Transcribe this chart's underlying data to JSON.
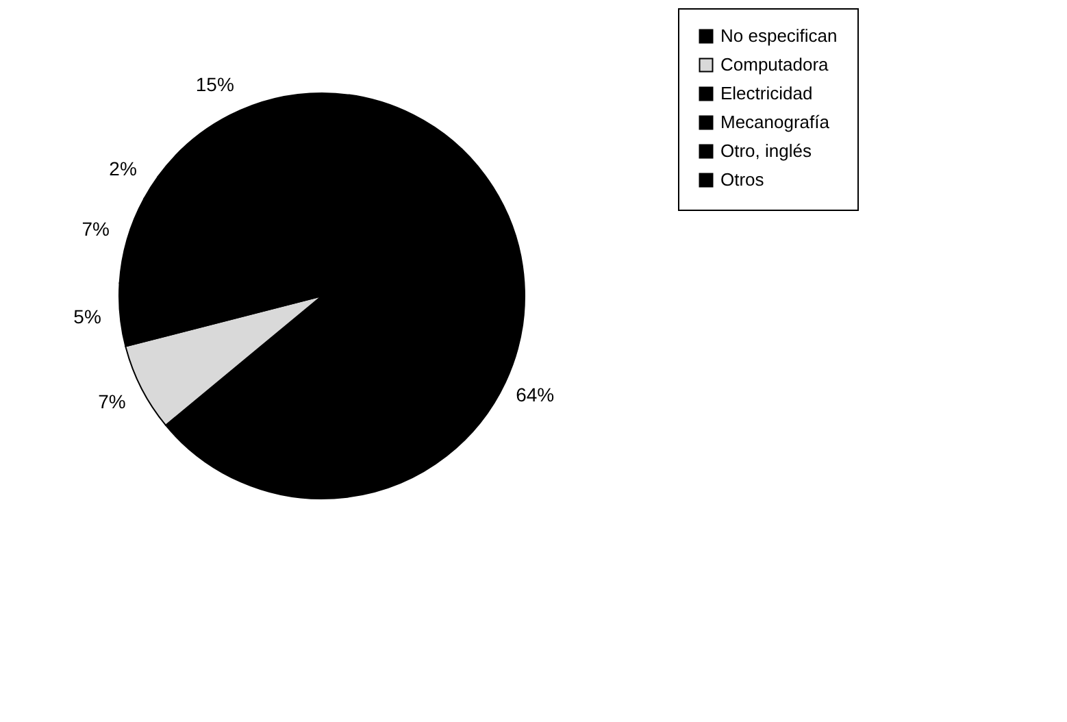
{
  "chart_data": {
    "type": "pie",
    "categories": [
      "No especifican",
      "Computadora",
      "Electricidad",
      "Mecanografía",
      "Otro, inglés",
      "Otros"
    ],
    "values": [
      64,
      7,
      5,
      7,
      2,
      15
    ],
    "colors": [
      "#000000",
      "#d9d9d9",
      "#000000",
      "#000000",
      "#000000",
      "#000000"
    ],
    "value_labels": [
      "64%",
      "7%",
      "5%",
      "7%",
      "2%",
      "15%"
    ],
    "legend": "right"
  }
}
